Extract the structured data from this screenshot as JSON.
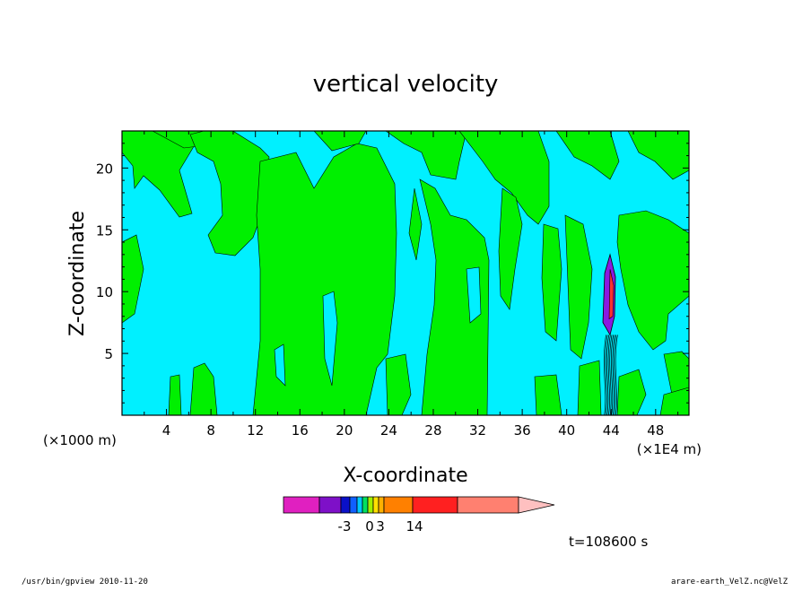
{
  "chart_data": {
    "type": "heatmap",
    "title": "vertical velocity",
    "xlabel": "X-coordinate",
    "ylabel": "Z-coordinate",
    "x_unit_left": "(×1000 m)",
    "x_unit_right": "(×1E4 m)",
    "xlim": [
      0,
      51
    ],
    "ylim": [
      0,
      23
    ],
    "x_ticks": [
      4,
      8,
      12,
      16,
      20,
      24,
      28,
      32,
      36,
      40,
      44,
      48
    ],
    "y_ticks": [
      5,
      10,
      15,
      20
    ],
    "time_label": "t=108600 s",
    "colorbar": {
      "colors": [
        "#e020c0",
        "#7e10c8",
        "#0a10c8",
        "#1060ff",
        "#00c8ff",
        "#00e060",
        "#a0f000",
        "#ffe000",
        "#ffb000",
        "#ff8000",
        "#ff2020",
        "#ff8070",
        "#ffc0c0"
      ],
      "labels": [
        "-3",
        "0",
        "3",
        "14"
      ]
    },
    "regions": {
      "background": "#00f0ff",
      "updraft": "#00f000",
      "downdraft": "#8a1ae0",
      "strong": "#ff3030"
    }
  },
  "footer": {
    "left": "/usr/bin/gpview   2010-11-20",
    "right": "arare-earth_VelZ.nc@VelZ"
  }
}
